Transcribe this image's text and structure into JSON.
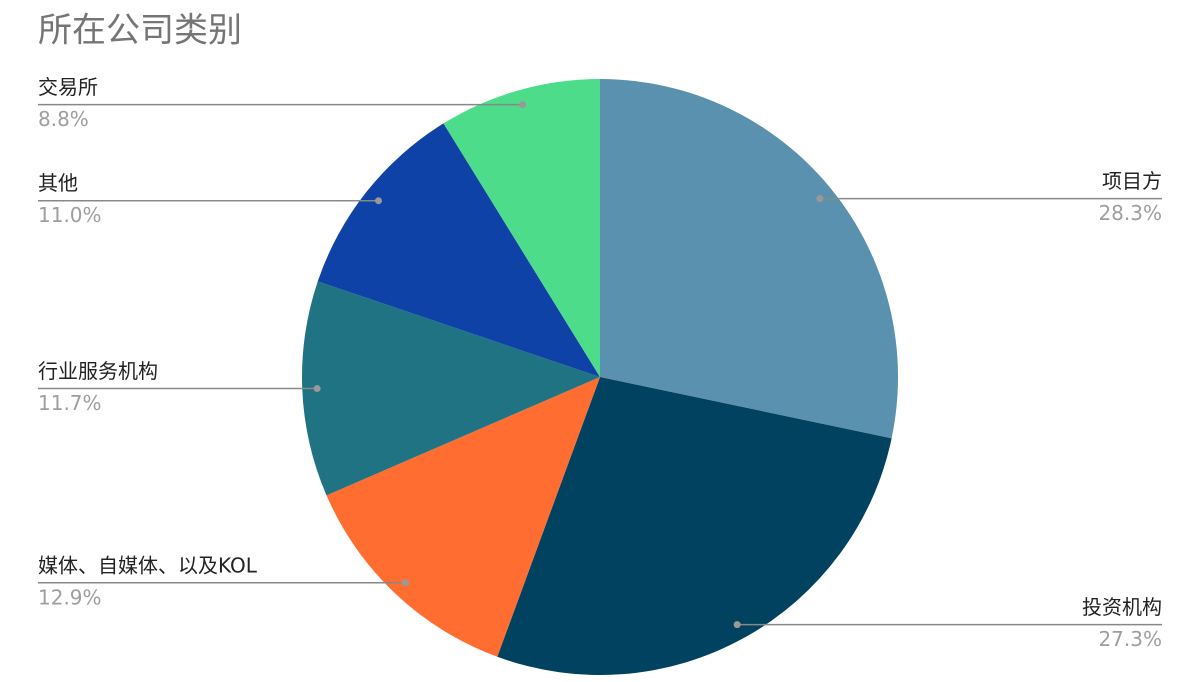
{
  "chart_data": {
    "type": "pie",
    "title": "所在公司类别",
    "categories": [
      "项目方",
      "投资机构",
      "媒体、自媒体、以及KOL",
      "行业服务机构",
      "其他",
      "交易所"
    ],
    "values": [
      28.3,
      27.3,
      12.9,
      11.7,
      11.0,
      8.8
    ],
    "value_labels": [
      "28.3%",
      "27.3%",
      "12.9%",
      "11.7%",
      "11.0%",
      "8.8%"
    ],
    "colors": [
      "#5a91ae",
      "#00425f",
      "#ff6d31",
      "#1f7382",
      "#0e42a6",
      "#4cdc8a"
    ]
  }
}
